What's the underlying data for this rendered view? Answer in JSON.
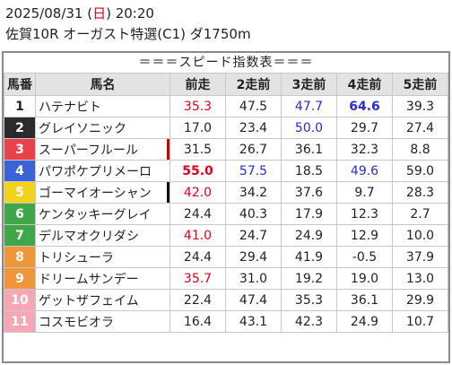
{
  "header": {
    "date_prefix": "2025/08/31 (",
    "weekday": "日",
    "date_suffix": ") 20:20",
    "race": "佐賀10R オーガスト特選(C1) ダ1750m"
  },
  "table": {
    "title": "＝＝＝スピード指数表＝＝＝",
    "columns": [
      "馬番",
      "馬名",
      "前走",
      "2走前",
      "3走前",
      "4走前",
      "5走前"
    ],
    "rows": [
      {
        "num": "1",
        "bg": "#ffffff",
        "fg": "#222222",
        "name": "ハテナビト",
        "bar": "",
        "vals": [
          {
            "v": "35.3",
            "c": "red",
            "b": false
          },
          {
            "v": "47.5",
            "c": "",
            "b": false
          },
          {
            "v": "47.7",
            "c": "blue",
            "b": false
          },
          {
            "v": "64.6",
            "c": "blue",
            "b": true
          },
          {
            "v": "39.3",
            "c": "",
            "b": false
          }
        ]
      },
      {
        "num": "2",
        "bg": "#2b2b2b",
        "fg": "#ffffff",
        "name": "グレイソニック",
        "bar": "",
        "vals": [
          {
            "v": "17.0",
            "c": "",
            "b": false
          },
          {
            "v": "23.4",
            "c": "",
            "b": false
          },
          {
            "v": "50.0",
            "c": "blue",
            "b": false
          },
          {
            "v": "29.7",
            "c": "",
            "b": false
          },
          {
            "v": "27.4",
            "c": "",
            "b": false
          }
        ]
      },
      {
        "num": "3",
        "bg": "#e8414a",
        "fg": "#ffffff",
        "name": "スーパーフルール",
        "bar": "red",
        "vals": [
          {
            "v": "31.5",
            "c": "",
            "b": false
          },
          {
            "v": "26.7",
            "c": "",
            "b": false
          },
          {
            "v": "36.1",
            "c": "",
            "b": false
          },
          {
            "v": "32.3",
            "c": "",
            "b": false
          },
          {
            "v": "8.8",
            "c": "",
            "b": false
          }
        ]
      },
      {
        "num": "4",
        "bg": "#3b63d8",
        "fg": "#ffffff",
        "name": "パワポケプリメーロ",
        "bar": "",
        "vals": [
          {
            "v": "55.0",
            "c": "red",
            "b": true
          },
          {
            "v": "57.5",
            "c": "blue",
            "b": false
          },
          {
            "v": "18.5",
            "c": "",
            "b": false
          },
          {
            "v": "49.6",
            "c": "blue",
            "b": false
          },
          {
            "v": "59.0",
            "c": "",
            "b": false
          }
        ]
      },
      {
        "num": "5",
        "bg": "#f2d21b",
        "fg": "#ffffff",
        "name": "ゴーマイオーシャン",
        "bar": "black",
        "vals": [
          {
            "v": "42.0",
            "c": "red",
            "b": false
          },
          {
            "v": "34.2",
            "c": "",
            "b": false
          },
          {
            "v": "37.6",
            "c": "",
            "b": false
          },
          {
            "v": "9.7",
            "c": "",
            "b": false
          },
          {
            "v": "28.3",
            "c": "",
            "b": false
          }
        ]
      },
      {
        "num": "6",
        "bg": "#3fa74a",
        "fg": "#ffffff",
        "name": "ケンタッキーグレイ",
        "bar": "",
        "vals": [
          {
            "v": "24.4",
            "c": "",
            "b": false
          },
          {
            "v": "40.3",
            "c": "",
            "b": false
          },
          {
            "v": "17.9",
            "c": "",
            "b": false
          },
          {
            "v": "12.3",
            "c": "",
            "b": false
          },
          {
            "v": "2.7",
            "c": "",
            "b": false
          }
        ]
      },
      {
        "num": "7",
        "bg": "#3fa74a",
        "fg": "#ffffff",
        "name": "デルマオクリダシ",
        "bar": "",
        "vals": [
          {
            "v": "41.0",
            "c": "red",
            "b": false
          },
          {
            "v": "24.7",
            "c": "",
            "b": false
          },
          {
            "v": "24.9",
            "c": "",
            "b": false
          },
          {
            "v": "12.9",
            "c": "",
            "b": false
          },
          {
            "v": "10.0",
            "c": "",
            "b": false
          }
        ]
      },
      {
        "num": "8",
        "bg": "#f0963a",
        "fg": "#ffffff",
        "name": "トリシューラ",
        "bar": "",
        "vals": [
          {
            "v": "24.4",
            "c": "",
            "b": false
          },
          {
            "v": "29.4",
            "c": "",
            "b": false
          },
          {
            "v": "41.9",
            "c": "",
            "b": false
          },
          {
            "v": "-0.5",
            "c": "",
            "b": false
          },
          {
            "v": "37.9",
            "c": "",
            "b": false
          }
        ]
      },
      {
        "num": "9",
        "bg": "#f0963a",
        "fg": "#ffffff",
        "name": "ドリームサンデー",
        "bar": "",
        "vals": [
          {
            "v": "35.7",
            "c": "red",
            "b": false
          },
          {
            "v": "31.0",
            "c": "",
            "b": false
          },
          {
            "v": "19.2",
            "c": "",
            "b": false
          },
          {
            "v": "19.0",
            "c": "",
            "b": false
          },
          {
            "v": "13.0",
            "c": "",
            "b": false
          }
        ]
      },
      {
        "num": "10",
        "bg": "#f5a7b5",
        "fg": "#ffffff",
        "name": "ゲットザフェイム",
        "bar": "",
        "vals": [
          {
            "v": "22.4",
            "c": "",
            "b": false
          },
          {
            "v": "47.4",
            "c": "",
            "b": false
          },
          {
            "v": "35.3",
            "c": "",
            "b": false
          },
          {
            "v": "36.1",
            "c": "",
            "b": false
          },
          {
            "v": "29.9",
            "c": "",
            "b": false
          }
        ]
      },
      {
        "num": "11",
        "bg": "#f5a7b5",
        "fg": "#ffffff",
        "name": "コスモビオラ",
        "bar": "",
        "vals": [
          {
            "v": "16.4",
            "c": "",
            "b": false
          },
          {
            "v": "43.1",
            "c": "",
            "b": false
          },
          {
            "v": "42.3",
            "c": "",
            "b": false
          },
          {
            "v": "24.9",
            "c": "",
            "b": false
          },
          {
            "v": "10.7",
            "c": "",
            "b": false
          }
        ]
      }
    ]
  }
}
